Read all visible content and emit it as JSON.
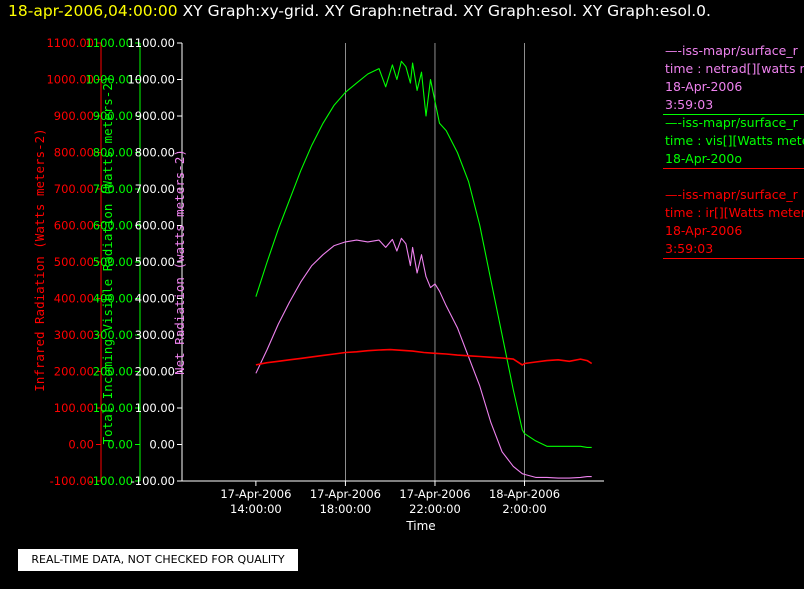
{
  "header": {
    "timestamp": "18-apr-2006,04:00:00",
    "titles": [
      "XY Graph:xy-grid.",
      "XY Graph:netrad.",
      "XY Graph:esol.",
      "XY Graph:esol.0."
    ]
  },
  "colors": {
    "ir": "#ff0000",
    "vis": "#00ff00",
    "net": "#ee82ee",
    "grid": "#ffffff",
    "text": "#ffffff"
  },
  "legend": [
    {
      "line1": "—-iss-mapr/surface_r",
      "line2": "time : netrad[][watts m",
      "line3": "18-Apr-2006",
      "line4": "3:59:03",
      "color": "#ee82ee"
    },
    {
      "line1": "—-iss-mapr/surface_r",
      "line2": "time : vis[][Watts mete",
      "line3": "18-Apr-200o",
      "line4": "",
      "color": "#00ff00"
    },
    {
      "line1": "—-iss-mapr/surface_r",
      "line2": "time : ir[][Watts meters",
      "line3": "18-Apr-2006",
      "line4": "3:59:03",
      "color": "#ff0000"
    }
  ],
  "footer": "REAL-TIME DATA, NOT CHECKED FOR QUALITY",
  "chart_data": {
    "type": "line",
    "xlabel": "Time",
    "xlim": [
      10.7,
      29.55
    ],
    "ylim": [
      -100,
      1100
    ],
    "grid": "vertical lines only",
    "x_ticks": [
      {
        "x": 14,
        "line1": "17-Apr-2006",
        "line2": "14:00:00"
      },
      {
        "x": 18,
        "line1": "17-Apr-2006",
        "line2": "18:00:00"
      },
      {
        "x": 22,
        "line1": "17-Apr-2006",
        "line2": "22:00:00"
      },
      {
        "x": 26,
        "line1": "18-Apr-2006",
        "line2": "2:00:00"
      }
    ],
    "y_ticks": [
      "-100.00",
      "0.00",
      "100.00",
      "200.00",
      "300.00",
      "400.00",
      "500.00",
      "600.00",
      "700.00",
      "800.00",
      "900.00",
      "1000.00",
      "1100.00"
    ],
    "axes": [
      {
        "name": "ir",
        "label": "Infrared Radiation (Watts meters-2)",
        "color": "#ff0000"
      },
      {
        "name": "vis",
        "label": "Total Incoming Visible Radiation (Watts meters-2)",
        "color": "#00ff00"
      },
      {
        "name": "net",
        "label": "Net Radiation (watts meters-2)",
        "color": "#ee82ee"
      }
    ],
    "series": [
      {
        "name": "vis",
        "color": "#00ff00",
        "x": [
          14.0,
          14.5,
          15.0,
          15.5,
          16.0,
          16.5,
          17.0,
          17.5,
          18.0,
          18.5,
          19.0,
          19.5,
          19.8,
          20.1,
          20.3,
          20.5,
          20.7,
          20.9,
          21.0,
          21.2,
          21.4,
          21.6,
          21.8,
          22.0,
          22.2,
          22.5,
          23.0,
          23.5,
          24.0,
          24.5,
          25.0,
          25.5,
          25.9,
          26.0,
          26.5,
          27.0,
          27.5,
          28.0,
          28.5,
          28.8,
          29.0
        ],
        "y": [
          405,
          500,
          590,
          670,
          750,
          820,
          880,
          930,
          965,
          990,
          1015,
          1030,
          980,
          1040,
          1000,
          1050,
          1035,
          990,
          1045,
          970,
          1020,
          900,
          1000,
          940,
          880,
          860,
          800,
          720,
          600,
          450,
          300,
          150,
          40,
          30,
          10,
          -5,
          -5,
          -5,
          -5,
          -8,
          -8
        ]
      },
      {
        "name": "net",
        "color": "#ee82ee",
        "x": [
          14.0,
          14.5,
          15.0,
          15.5,
          16.0,
          16.5,
          17.0,
          17.5,
          18.0,
          18.5,
          19.0,
          19.5,
          19.8,
          20.1,
          20.3,
          20.5,
          20.7,
          20.9,
          21.0,
          21.2,
          21.4,
          21.6,
          21.8,
          22.0,
          22.2,
          22.5,
          23.0,
          23.5,
          24.0,
          24.5,
          25.0,
          25.5,
          25.9,
          26.0,
          26.5,
          27.0,
          27.5,
          28.0,
          28.5,
          28.8,
          29.0
        ],
        "y": [
          195,
          260,
          330,
          390,
          445,
          490,
          520,
          545,
          555,
          560,
          555,
          560,
          540,
          562,
          530,
          565,
          550,
          490,
          540,
          470,
          520,
          460,
          430,
          440,
          420,
          380,
          320,
          240,
          160,
          60,
          -20,
          -60,
          -80,
          -82,
          -90,
          -90,
          -92,
          -92,
          -90,
          -88,
          -88
        ]
      },
      {
        "name": "ir",
        "color": "#ff0000",
        "x": [
          14.0,
          14.5,
          15.0,
          15.5,
          16.0,
          16.5,
          17.0,
          17.5,
          18.0,
          18.5,
          19.0,
          19.5,
          20.0,
          20.5,
          21.0,
          21.5,
          22.0,
          22.5,
          23.0,
          23.5,
          24.0,
          24.5,
          25.0,
          25.5,
          25.9,
          26.0,
          26.5,
          27.0,
          27.5,
          28.0,
          28.5,
          28.8,
          29.0
        ],
        "y": [
          218,
          224,
          228,
          232,
          236,
          240,
          244,
          248,
          252,
          254,
          257,
          259,
          260,
          258,
          256,
          252,
          250,
          248,
          245,
          243,
          241,
          239,
          237,
          234,
          218,
          222,
          226,
          230,
          232,
          228,
          234,
          230,
          222
        ]
      }
    ]
  }
}
